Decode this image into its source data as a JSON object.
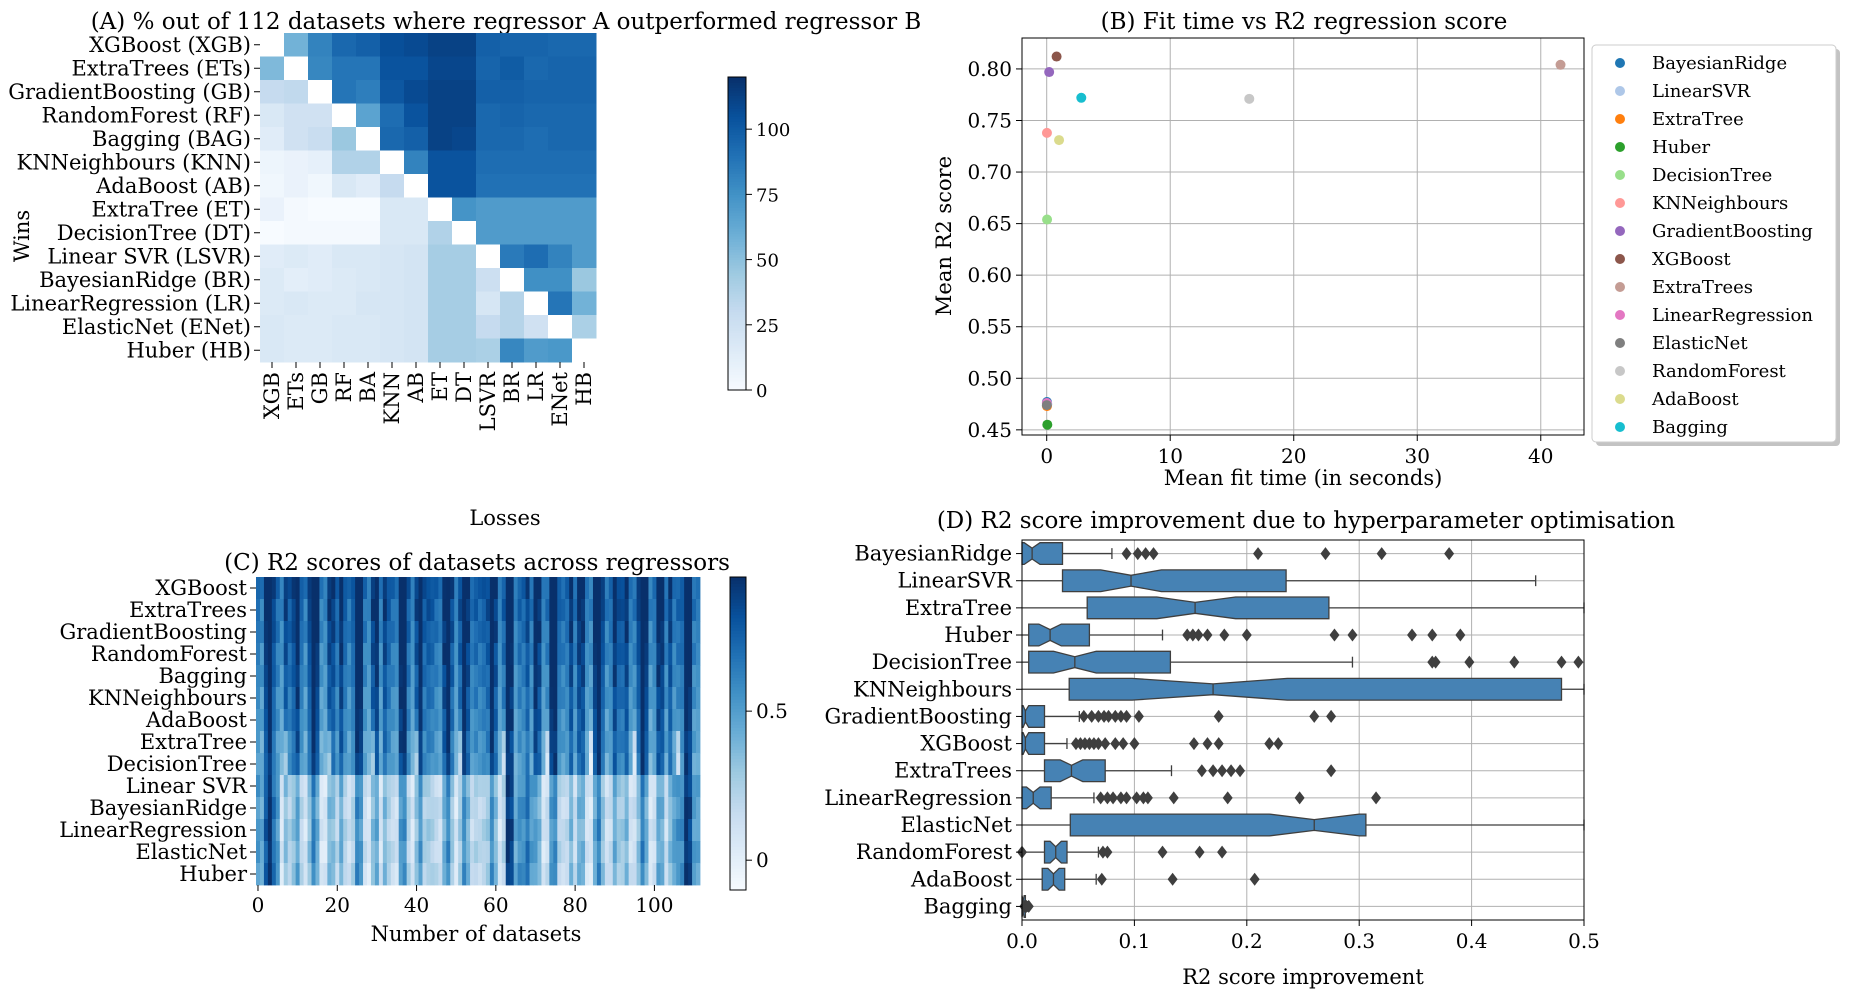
{
  "chart_data": [
    {
      "id": "A",
      "type": "heatmap",
      "title": "(A) % out of 112 datasets where regressor A outperformed regressor B",
      "ylabel": "Wins",
      "xlabel": "Losses",
      "row_labels": [
        "XGBoost (XGB)",
        "ExtraTrees (ETs)",
        "GradientBoosting (GB)",
        "RandomForest (RF)",
        "Bagging (BAG)",
        "KNNeighbours (KNN)",
        "AdaBoost (AB)",
        "ExtraTree (ET)",
        "DecisionTree (DT)",
        "Linear SVR (LSVR)",
        "BayesianRidge (BR)",
        "LinearRegression (LR)",
        "ElasticNet (ENet)",
        "Huber (HB)"
      ],
      "col_labels": [
        "XGB",
        "ETs",
        "GB",
        "RF",
        "BA",
        "KNN",
        "AB",
        "ET",
        "DT",
        "LSVR",
        "BR",
        "LR",
        "ENet",
        "HB"
      ],
      "values": [
        [
          null,
          58,
          82,
          94,
          98,
          106,
          108,
          112,
          112,
          98,
          96,
          96,
          94,
          94
        ],
        [
          54,
          null,
          80,
          88,
          88,
          104,
          104,
          110,
          110,
          96,
          100,
          94,
          96,
          96
        ],
        [
          30,
          32,
          null,
          88,
          84,
          102,
          108,
          112,
          112,
          98,
          98,
          96,
          96,
          96
        ],
        [
          18,
          24,
          24,
          null,
          66,
          92,
          104,
          112,
          112,
          94,
          96,
          94,
          94,
          94
        ],
        [
          14,
          24,
          28,
          46,
          null,
          94,
          98,
          112,
          110,
          94,
          94,
          92,
          94,
          94
        ],
        [
          6,
          8,
          10,
          38,
          38,
          null,
          82,
          104,
          104,
          92,
          92,
          92,
          92,
          92
        ],
        [
          4,
          8,
          4,
          18,
          14,
          30,
          null,
          104,
          104,
          90,
          90,
          90,
          90,
          90
        ],
        [
          8,
          2,
          0,
          0,
          0,
          18,
          18,
          null,
          74,
          70,
          70,
          70,
          70,
          70
        ],
        [
          0,
          2,
          2,
          2,
          2,
          18,
          18,
          38,
          null,
          70,
          70,
          70,
          70,
          70
        ],
        [
          14,
          16,
          14,
          18,
          18,
          20,
          22,
          42,
          42,
          null,
          86,
          92,
          82,
          70
        ],
        [
          16,
          12,
          14,
          16,
          18,
          20,
          22,
          42,
          42,
          26,
          null,
          76,
          76,
          46
        ],
        [
          16,
          18,
          16,
          16,
          20,
          20,
          22,
          42,
          42,
          20,
          36,
          null,
          88,
          58
        ],
        [
          18,
          16,
          16,
          18,
          18,
          20,
          22,
          42,
          42,
          30,
          36,
          24,
          null,
          40
        ],
        [
          18,
          16,
          16,
          18,
          18,
          20,
          22,
          42,
          42,
          40,
          80,
          70,
          72,
          null
        ]
      ],
      "colorbar_ticks": [
        0,
        25,
        50,
        75,
        100
      ],
      "colorbar_range": [
        0,
        120
      ],
      "colormap": "Blues"
    },
    {
      "id": "B",
      "type": "scatter",
      "title": "(B) Fit time vs R2 regression score",
      "xlabel": "Mean fit time (in seconds)",
      "ylabel": "Mean R2 score",
      "xlim": [
        -2,
        43.5
      ],
      "ylim": [
        0.445,
        0.83
      ],
      "xticks": [
        0,
        10,
        20,
        30,
        40
      ],
      "yticks": [
        0.45,
        0.5,
        0.55,
        0.6,
        0.65,
        0.7,
        0.75,
        0.8
      ],
      "ytick_labels": [
        "0.45",
        "0.50",
        "0.55",
        "0.60",
        "0.65",
        "0.70",
        "0.75",
        "0.80"
      ],
      "grid": true,
      "legend_placement": "outside right",
      "series": [
        {
          "name": "BayesianRidge",
          "color": "#1f77b4",
          "x": 0.02,
          "y": 0.477
        },
        {
          "name": "LinearSVR",
          "color": "#aec7e8",
          "x": 0.05,
          "y": 0.475
        },
        {
          "name": "ExtraTree",
          "color": "#ff7f0e",
          "x": 0.02,
          "y": 0.473
        },
        {
          "name": "Huber",
          "color": "#2ca02c",
          "x": 0.05,
          "y": 0.455
        },
        {
          "name": "DecisionTree",
          "color": "#98df8a",
          "x": 0.03,
          "y": 0.654
        },
        {
          "name": "KNNeighbours",
          "color": "#ff9896",
          "x": 0.02,
          "y": 0.738
        },
        {
          "name": "GradientBoosting",
          "color": "#9467bd",
          "x": 0.2,
          "y": 0.797
        },
        {
          "name": "XGBoost",
          "color": "#8c564b",
          "x": 0.8,
          "y": 0.812
        },
        {
          "name": "ExtraTrees",
          "color": "#c49c94",
          "x": 41.6,
          "y": 0.804
        },
        {
          "name": "LinearRegression",
          "color": "#e377c2",
          "x": 0.01,
          "y": 0.476
        },
        {
          "name": "ElasticNet",
          "color": "#7f7f7f",
          "x": 0.01,
          "y": 0.474
        },
        {
          "name": "RandomForest",
          "color": "#c7c7c7",
          "x": 16.4,
          "y": 0.771
        },
        {
          "name": "AdaBoost",
          "color": "#dbdb8d",
          "x": 1.0,
          "y": 0.731
        },
        {
          "name": "Bagging",
          "color": "#17becf",
          "x": 2.8,
          "y": 0.772
        }
      ]
    },
    {
      "id": "C",
      "type": "heatmap",
      "title": "(C) R2 scores of datasets across regressors",
      "xlabel": "Number of datasets",
      "row_labels": [
        "XGBoost",
        "ExtraTrees",
        "GradientBoosting",
        "RandomForest",
        "Bagging",
        "KNNeighbours",
        "AdaBoost",
        "ExtraTree",
        "DecisionTree",
        "Linear SVR",
        "BayesianRidge",
        "LinearRegression",
        "ElasticNet",
        "Huber"
      ],
      "n_datasets": 112,
      "xticks": [
        0,
        20,
        40,
        60,
        80,
        100
      ],
      "colorbar_ticks": [
        0,
        0.5
      ],
      "colorbar_range": [
        -0.1,
        0.95
      ],
      "colormap": "Blues"
    },
    {
      "id": "D",
      "type": "box",
      "title": "(D) R2 score improvement due to hyperparameter optimisation",
      "xlabel": "R2 score improvement",
      "xlim": [
        0,
        0.5
      ],
      "xticks": [
        0.0,
        0.1,
        0.2,
        0.3,
        0.4,
        0.5
      ],
      "xtick_labels": [
        "0.0",
        "0.1",
        "0.2",
        "0.3",
        "0.4",
        "0.5"
      ],
      "grid": true,
      "box_color": "#4682b4",
      "series": [
        {
          "name": "BayesianRidge",
          "q1": 0.0,
          "med": 0.009,
          "q3": 0.036,
          "notch": [
            0.002,
            0.016
          ],
          "whisker": [
            0.0,
            0.08
          ],
          "fliers": [
            0.093,
            0.103,
            0.11,
            0.117,
            0.21,
            0.27,
            0.32,
            0.38
          ]
        },
        {
          "name": "LinearSVR",
          "q1": 0.036,
          "med": 0.097,
          "q3": 0.235,
          "notch": [
            0.07,
            0.124
          ],
          "whisker": [
            0.0,
            0.457
          ],
          "fliers": []
        },
        {
          "name": "ExtraTree",
          "q1": 0.058,
          "med": 0.154,
          "q3": 0.273,
          "notch": [
            0.12,
            0.19
          ],
          "whisker": [
            0.0,
            0.5
          ],
          "fliers": []
        },
        {
          "name": "Huber",
          "q1": 0.006,
          "med": 0.025,
          "q3": 0.06,
          "notch": [
            0.015,
            0.035
          ],
          "whisker": [
            0.0,
            0.125
          ],
          "fliers": [
            0.147,
            0.152,
            0.157,
            0.165,
            0.18,
            0.2,
            0.278,
            0.294,
            0.347,
            0.365,
            0.39
          ]
        },
        {
          "name": "DecisionTree",
          "q1": 0.006,
          "med": 0.047,
          "q3": 0.132,
          "notch": [
            0.028,
            0.066
          ],
          "whisker": [
            0.0,
            0.294
          ],
          "fliers": [
            0.365,
            0.368,
            0.398,
            0.438,
            0.48,
            0.495
          ]
        },
        {
          "name": "KNNeighbours",
          "q1": 0.042,
          "med": 0.17,
          "q3": 0.48,
          "notch": [
            0.098,
            0.236
          ],
          "whisker": [
            0.0,
            0.5
          ],
          "fliers": []
        },
        {
          "name": "GradientBoosting",
          "q1": 0.0,
          "med": 0.003,
          "q3": 0.02,
          "notch": [
            0.001,
            0.006
          ],
          "whisker": [
            0.0,
            0.051
          ],
          "fliers": [
            0.055,
            0.062,
            0.068,
            0.073,
            0.077,
            0.083,
            0.088,
            0.093,
            0.104,
            0.175,
            0.26,
            0.275
          ]
        },
        {
          "name": "XGBoost",
          "q1": 0.0,
          "med": 0.003,
          "q3": 0.02,
          "notch": [
            0.001,
            0.006
          ],
          "whisker": [
            0.0,
            0.04
          ],
          "fliers": [
            0.048,
            0.052,
            0.056,
            0.06,
            0.064,
            0.068,
            0.074,
            0.083,
            0.09,
            0.1,
            0.153,
            0.165,
            0.175,
            0.22,
            0.228
          ]
        },
        {
          "name": "ExtraTrees",
          "q1": 0.02,
          "med": 0.044,
          "q3": 0.074,
          "notch": [
            0.034,
            0.054
          ],
          "whisker": [
            0.0,
            0.133
          ],
          "fliers": [
            0.16,
            0.17,
            0.178,
            0.186,
            0.194,
            0.275
          ]
        },
        {
          "name": "LinearRegression",
          "q1": 0.0,
          "med": 0.01,
          "q3": 0.026,
          "notch": [
            0.004,
            0.016
          ],
          "whisker": [
            0.0,
            0.064
          ],
          "fliers": [
            0.07,
            0.076,
            0.081,
            0.088,
            0.093,
            0.102,
            0.108,
            0.112,
            0.135,
            0.183,
            0.247,
            0.315
          ]
        },
        {
          "name": "ElasticNet",
          "q1": 0.043,
          "med": 0.26,
          "q3": 0.306,
          "notch": [
            0.22,
            0.3
          ],
          "whisker": [
            0.0,
            0.5
          ],
          "fliers": []
        },
        {
          "name": "RandomForest",
          "q1": 0.02,
          "med": 0.03,
          "q3": 0.04,
          "notch": [
            0.025,
            0.035
          ],
          "whisker": [
            0.0,
            0.068
          ],
          "fliers": [
            0.0,
            0.072,
            0.076,
            0.125,
            0.158,
            0.178
          ]
        },
        {
          "name": "AdaBoost",
          "q1": 0.018,
          "med": 0.028,
          "q3": 0.038,
          "notch": [
            0.023,
            0.033
          ],
          "whisker": [
            0.0,
            0.066
          ],
          "fliers": [
            0.071,
            0.134,
            0.207
          ]
        },
        {
          "name": "Bagging",
          "q1": 0.0,
          "med": 0.001,
          "q3": 0.003,
          "notch": [
            0.0,
            0.002
          ],
          "whisker": [
            0.0,
            0.005
          ],
          "fliers": [
            0.002,
            0.004,
            0.006
          ]
        }
      ]
    }
  ]
}
